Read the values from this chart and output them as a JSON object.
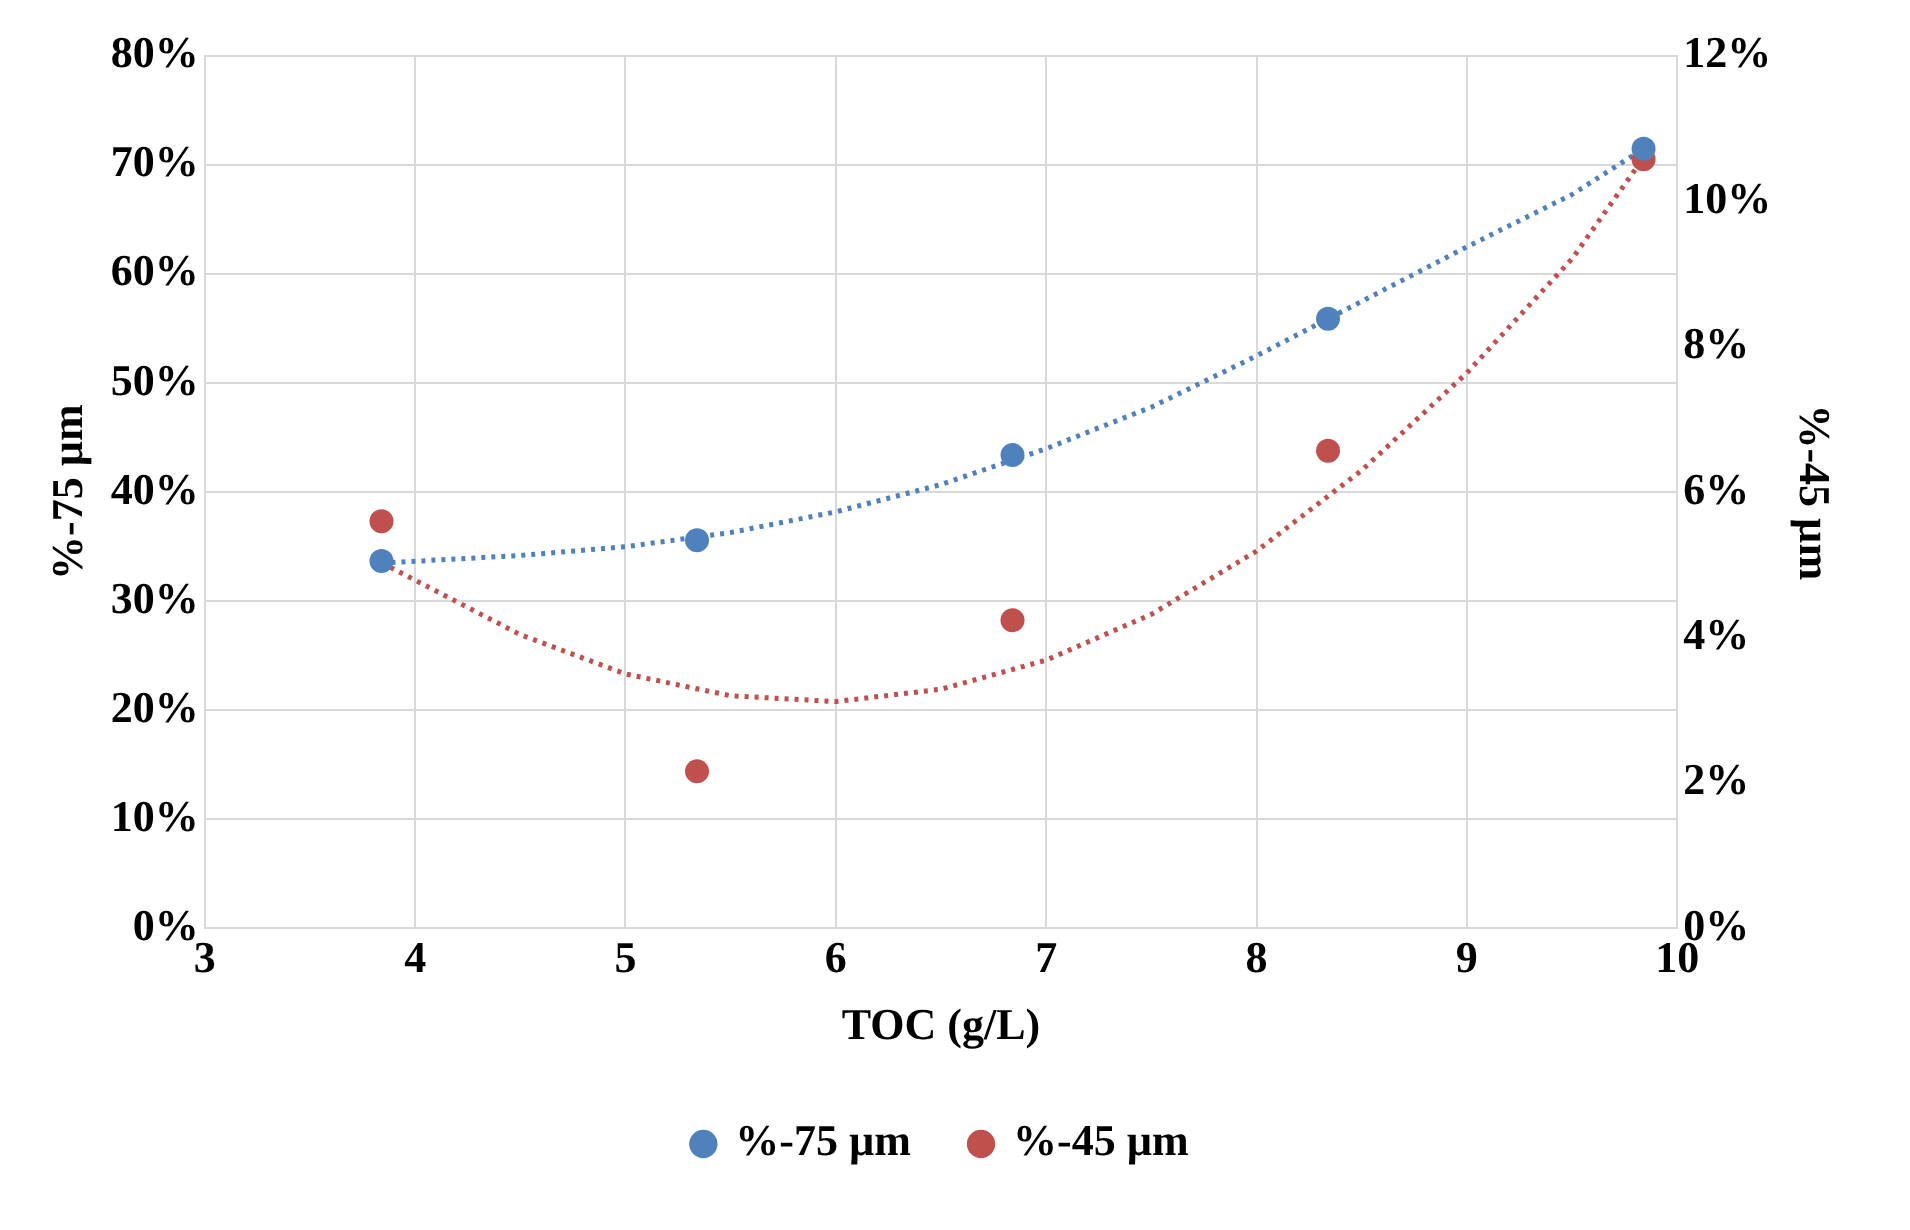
{
  "chart_data": {
    "type": "scatter",
    "xlabel": "TOC (g/L)",
    "ylabel": "%-75 µm",
    "y2label": "%-45 µm",
    "series": [
      {
        "name": "%-75 µm",
        "color": "#4f81bd",
        "marker": "circle",
        "x": [
          3.84,
          5.34,
          6.84,
          8.34,
          9.84
        ],
        "values": [
          33.7,
          35.6,
          43.4,
          55.9,
          71.5
        ]
      },
      {
        "name": "%-45 µm",
        "axis": "y2",
        "color": "#c0504d",
        "marker": "circle",
        "x": [
          3.84,
          5.34,
          6.84,
          8.34,
          9.84
        ],
        "values": [
          5.6,
          2.16,
          4.24,
          6.57,
          10.58
        ]
      },
      {
        "type": "line",
        "color": "#4f81bd",
        "marker": "none",
        "line_style": "dotted",
        "x": [
          3.84,
          4.5,
          5,
          5.5,
          6,
          6.5,
          7,
          7.5,
          8,
          8.5,
          9,
          9.5,
          9.84
        ],
        "values": [
          33.5,
          34.2,
          35,
          36.3,
          38.2,
          40.7,
          44,
          47.8,
          52.5,
          57.5,
          62.5,
          67.3,
          71.5
        ]
      },
      {
        "type": "line",
        "axis": "y2",
        "color": "#c0504d",
        "marker": "none",
        "line_style": "dotted",
        "x": [
          3.84,
          4.5,
          5,
          5.5,
          6,
          6.5,
          7,
          7.5,
          8,
          8.5,
          9,
          9.5,
          9.84
        ],
        "values": [
          5.03,
          4.04,
          3.5,
          3.2,
          3.12,
          3.29,
          3.69,
          4.32,
          5.19,
          6.3,
          7.64,
          9.21,
          10.6
        ]
      }
    ],
    "xlim": [
      3,
      10
    ],
    "xticks": [
      3,
      4,
      5,
      6,
      7,
      8,
      9,
      10
    ],
    "ylim": [
      0,
      80
    ],
    "yticks": [
      {
        "value": 0,
        "label": "0%"
      },
      {
        "value": 10,
        "label": "10%"
      },
      {
        "value": 20,
        "label": "20%"
      },
      {
        "value": 30,
        "label": "30%"
      },
      {
        "value": 40,
        "label": "40%"
      },
      {
        "value": 50,
        "label": "50%"
      },
      {
        "value": 60,
        "label": "60%"
      },
      {
        "value": 70,
        "label": "70%"
      },
      {
        "value": 80,
        "label": "80%"
      }
    ],
    "y2lim": [
      0,
      12
    ],
    "y2ticks": [
      {
        "value": 0,
        "label": "0%"
      },
      {
        "value": 2,
        "label": "2%"
      },
      {
        "value": 4,
        "label": "4%"
      },
      {
        "value": 6,
        "label": "6%"
      },
      {
        "value": 8,
        "label": "8%"
      },
      {
        "value": 10,
        "label": "10%"
      },
      {
        "value": 12,
        "label": "12%"
      }
    ],
    "grid": true,
    "legend": "bottom"
  }
}
